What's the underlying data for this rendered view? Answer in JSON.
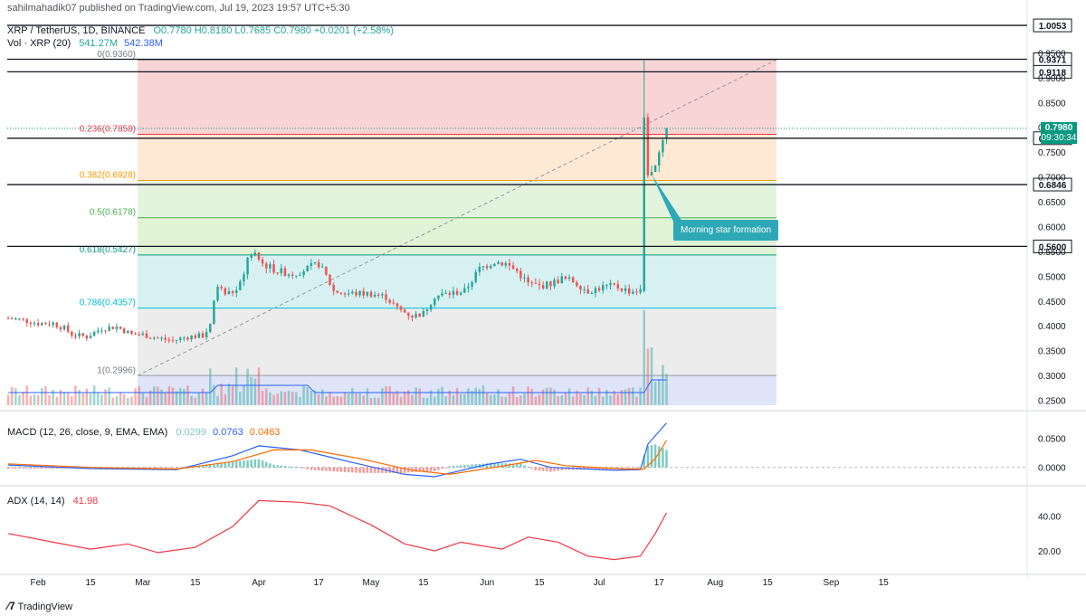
{
  "header": {
    "publisher": "sahilmahadik07 published on TradingView.com, Jul 19, 2023 19:57 UTC+5:30",
    "symbol": "XRP / TetherUS, 1D, BINANCE",
    "ohlc": "O0.7780 H0.8180 L0.7685 C0.7980 +0.0201 (+2.58%)",
    "vol_label": "Vol · XRP (20)",
    "vol_value1": "541.27M",
    "vol_value2": "542.38M"
  },
  "macd": {
    "label": "MACD (12, 26, close, 9, EMA, EMA)",
    "v1": "0.0299",
    "v2": "0.0763",
    "v3": "0.0463"
  },
  "adx": {
    "label": "ADX (14, 14)",
    "value": "41.98"
  },
  "annotation": "Morning star formation",
  "price_tags": [
    {
      "value": 1.0053,
      "text": "1.0053",
      "style": "dark"
    },
    {
      "value": 0.9371,
      "text": "0.9371",
      "style": "dark"
    },
    {
      "value": 0.9118,
      "text": "0.9118",
      "style": "dark"
    },
    {
      "value": 0.778,
      "text": "0.7780",
      "style": "dark"
    },
    {
      "value": 0.6846,
      "text": "0.6846",
      "style": "dark"
    },
    {
      "value": 0.56,
      "text": "0.5600",
      "style": "dark"
    }
  ],
  "current_price": {
    "price": "0.7980",
    "countdown": "09:30:34"
  },
  "footer": "TradingView",
  "colors": {
    "up": "#26a69a",
    "down": "#ef5350",
    "macd": "#2962ff",
    "signal": "#ff6d00",
    "adx": "#f23645"
  },
  "chart_data": [
    {
      "type": "candlestick",
      "title": "XRP / TetherUS, 1D, BINANCE",
      "y_axis_ticks": [
        0.25,
        0.3,
        0.35,
        0.4,
        0.45,
        0.5,
        0.55,
        0.6,
        0.65,
        0.7,
        0.75,
        0.8,
        0.85,
        0.9,
        0.95
      ],
      "y_axis_labels": [
        "0.2500",
        "0.3000",
        "0.3500",
        "0.4000",
        "0.4500",
        "0.5000",
        "0.5500",
        "0.6000",
        "0.6500",
        "0.7000",
        "0.7500",
        "0.8000",
        "0.8500",
        "0.9000",
        "0.9500"
      ],
      "ylim": [
        0.24,
        1.02
      ],
      "x_tick_labels": [
        "Feb",
        "15",
        "Mar",
        "15",
        "Apr",
        "17",
        "May",
        "15",
        "Jun",
        "15",
        "Jul",
        "17",
        "Aug",
        "15",
        "Sep",
        "15"
      ],
      "horizontal_levels": [
        1.0053,
        0.9371,
        0.9118,
        0.778,
        0.6846,
        0.56
      ],
      "fibonacci": [
        {
          "label": "0(0.9360)",
          "ratio": 0,
          "value": 0.936
        },
        {
          "label": "0.236(0.7858)",
          "ratio": 0.236,
          "value": 0.7858
        },
        {
          "label": "0.382(0.6928)",
          "ratio": 0.382,
          "value": 0.6928
        },
        {
          "label": "0.5(0.6178)",
          "ratio": 0.5,
          "value": 0.6178
        },
        {
          "label": "0.618(0.5427)",
          "ratio": 0.618,
          "value": 0.5427
        },
        {
          "label": "0.786(0.4357)",
          "ratio": 0.786,
          "value": 0.4357
        },
        {
          "label": "1(0.2996)",
          "ratio": 1,
          "value": 0.2996
        }
      ],
      "price_path": [
        [
          "2023-01-24",
          0.415
        ],
        [
          "2023-01-28",
          0.412
        ],
        [
          "2023-02-01",
          0.405
        ],
        [
          "2023-02-05",
          0.405
        ],
        [
          "2023-02-08",
          0.395
        ],
        [
          "2023-02-10",
          0.383
        ],
        [
          "2023-02-14",
          0.378
        ],
        [
          "2023-02-18",
          0.395
        ],
        [
          "2023-02-22",
          0.398
        ],
        [
          "2023-02-26",
          0.383
        ],
        [
          "2023-03-01",
          0.382
        ],
        [
          "2023-03-05",
          0.375
        ],
        [
          "2023-03-09",
          0.37
        ],
        [
          "2023-03-13",
          0.378
        ],
        [
          "2023-03-17",
          0.38
        ],
        [
          "2023-03-19",
          0.4
        ],
        [
          "2023-03-20",
          0.45
        ],
        [
          "2023-03-21",
          0.48
        ],
        [
          "2023-03-23",
          0.465
        ],
        [
          "2023-03-26",
          0.47
        ],
        [
          "2023-03-28",
          0.5
        ],
        [
          "2023-03-29",
          0.54
        ],
        [
          "2023-03-31",
          0.54
        ],
        [
          "2023-04-02",
          0.525
        ],
        [
          "2023-04-06",
          0.51
        ],
        [
          "2023-04-10",
          0.505
        ],
        [
          "2023-04-14",
          0.515
        ],
        [
          "2023-04-17",
          0.525
        ],
        [
          "2023-04-19",
          0.5
        ],
        [
          "2023-04-21",
          0.47
        ],
        [
          "2023-04-25",
          0.465
        ],
        [
          "2023-05-01",
          0.465
        ],
        [
          "2023-05-05",
          0.458
        ],
        [
          "2023-05-08",
          0.435
        ],
        [
          "2023-05-12",
          0.42
        ],
        [
          "2023-05-15",
          0.425
        ],
        [
          "2023-05-18",
          0.46
        ],
        [
          "2023-05-22",
          0.465
        ],
        [
          "2023-05-26",
          0.47
        ],
        [
          "2023-05-30",
          0.515
        ],
        [
          "2023-06-03",
          0.53
        ],
        [
          "2023-06-06",
          0.525
        ],
        [
          "2023-06-09",
          0.51
        ],
        [
          "2023-06-12",
          0.485
        ],
        [
          "2023-06-15",
          0.48
        ],
        [
          "2023-06-18",
          0.485
        ],
        [
          "2023-06-21",
          0.495
        ],
        [
          "2023-06-24",
          0.49
        ],
        [
          "2023-06-28",
          0.47
        ],
        [
          "2023-07-02",
          0.478
        ],
        [
          "2023-07-05",
          0.48
        ],
        [
          "2023-07-09",
          0.47
        ],
        [
          "2023-07-12",
          0.47
        ],
        [
          "2023-07-13",
          0.82
        ],
        [
          "2023-07-14",
          0.71
        ],
        [
          "2023-07-15",
          0.705
        ],
        [
          "2023-07-16",
          0.73
        ],
        [
          "2023-07-17",
          0.75
        ],
        [
          "2023-07-18",
          0.778
        ],
        [
          "2023-07-19",
          0.798
        ]
      ],
      "last_candle": {
        "open": 0.778,
        "high": 0.818,
        "low": 0.7685,
        "close": 0.798
      },
      "volume_ma": "541.27M",
      "volume_last": "542.38M"
    },
    {
      "type": "line",
      "title": "MACD (12, 26, close, 9, EMA, EMA)",
      "y_axis_labels": [
        "0.0000",
        "0.0500"
      ],
      "ylim": [
        -0.03,
        0.085
      ],
      "series": [
        {
          "name": "MACD",
          "points": [
            [
              "2023-01-24",
              0.004
            ],
            [
              "2023-02-15",
              -0.002
            ],
            [
              "2023-03-10",
              -0.004
            ],
            [
              "2023-03-25",
              0.02
            ],
            [
              "2023-04-01",
              0.037
            ],
            [
              "2023-04-12",
              0.03
            ],
            [
              "2023-04-25",
              0.01
            ],
            [
              "2023-05-10",
              -0.012
            ],
            [
              "2023-05-18",
              -0.016
            ],
            [
              "2023-06-01",
              0.005
            ],
            [
              "2023-06-10",
              0.014
            ],
            [
              "2023-06-18",
              0.0
            ],
            [
              "2023-07-05",
              -0.005
            ],
            [
              "2023-07-12",
              -0.004
            ],
            [
              "2023-07-14",
              0.04
            ],
            [
              "2023-07-19",
              0.0763
            ]
          ]
        },
        {
          "name": "Signal",
          "points": [
            [
              "2023-01-24",
              0.006
            ],
            [
              "2023-02-15",
              0.0
            ],
            [
              "2023-03-10",
              -0.003
            ],
            [
              "2023-03-25",
              0.01
            ],
            [
              "2023-04-05",
              0.03
            ],
            [
              "2023-04-15",
              0.03
            ],
            [
              "2023-04-28",
              0.015
            ],
            [
              "2023-05-12",
              -0.005
            ],
            [
              "2023-05-22",
              -0.012
            ],
            [
              "2023-06-05",
              0.002
            ],
            [
              "2023-06-14",
              0.012
            ],
            [
              "2023-06-22",
              0.003
            ],
            [
              "2023-07-08",
              -0.003
            ],
            [
              "2023-07-13",
              -0.003
            ],
            [
              "2023-07-16",
              0.015
            ],
            [
              "2023-07-19",
              0.0463
            ]
          ]
        }
      ],
      "histogram_last": 0.0299
    },
    {
      "type": "line",
      "title": "ADX (14, 14)",
      "y_axis_labels": [
        "20.00",
        "40.00"
      ],
      "ylim": [
        8,
        56
      ],
      "series": [
        {
          "name": "ADX",
          "points": [
            [
              "2023-01-24",
              30
            ],
            [
              "2023-02-05",
              25
            ],
            [
              "2023-02-15",
              21
            ],
            [
              "2023-02-25",
              24
            ],
            [
              "2023-03-05",
              19
            ],
            [
              "2023-03-15",
              22
            ],
            [
              "2023-03-25",
              34
            ],
            [
              "2023-04-01",
              49
            ],
            [
              "2023-04-12",
              48
            ],
            [
              "2023-04-20",
              46
            ],
            [
              "2023-05-01",
              35
            ],
            [
              "2023-05-10",
              24
            ],
            [
              "2023-05-18",
              20
            ],
            [
              "2023-05-25",
              25
            ],
            [
              "2023-06-05",
              21
            ],
            [
              "2023-06-12",
              28
            ],
            [
              "2023-06-20",
              25
            ],
            [
              "2023-06-28",
              17
            ],
            [
              "2023-07-05",
              15
            ],
            [
              "2023-07-12",
              17
            ],
            [
              "2023-07-16",
              30
            ],
            [
              "2023-07-19",
              41.98
            ]
          ]
        }
      ]
    }
  ]
}
